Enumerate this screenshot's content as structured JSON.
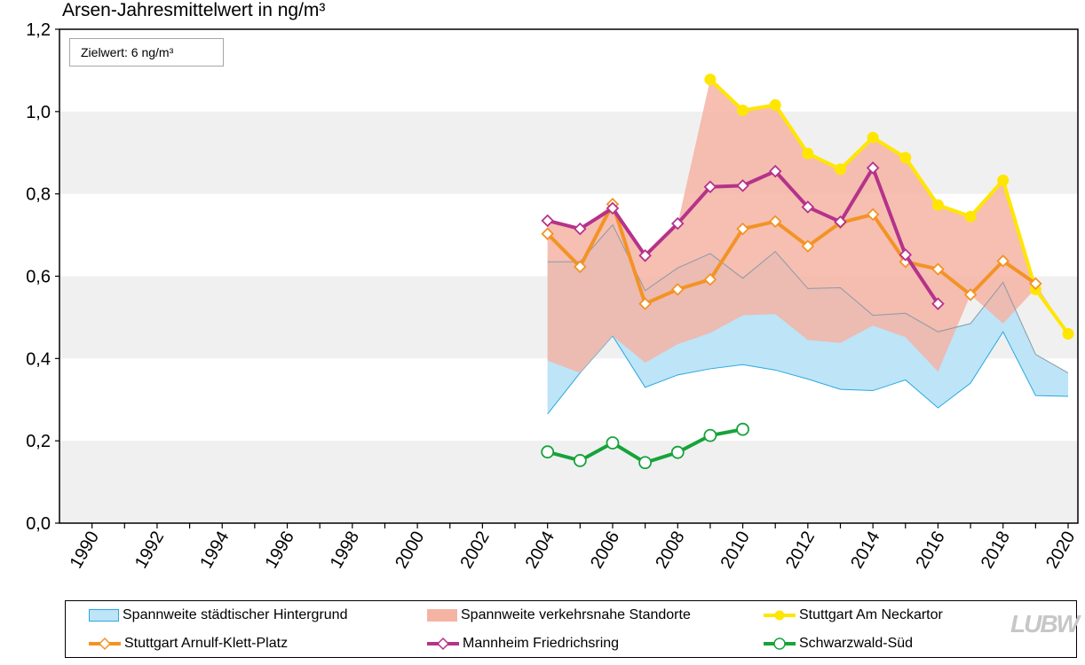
{
  "chart_data": {
    "type": "line",
    "title": "Arsen-Jahresmittelwert in ng/m³",
    "annotation": "Zielwert: 6 ng/m³",
    "ylim": [
      0,
      1.2
    ],
    "xlim": [
      1989,
      2020.3
    ],
    "y_ticks": [
      "0,0",
      "0,2",
      "0,4",
      "0,6",
      "0,8",
      "1,0",
      "1,2"
    ],
    "x_ticks": [
      "1990",
      "1992",
      "1994",
      "1996",
      "1998",
      "2000",
      "2002",
      "2004",
      "2006",
      "2008",
      "2010",
      "2012",
      "2014",
      "2016",
      "2018",
      "2020"
    ],
    "grid": "horizontal bands",
    "legend_placement": "bottom",
    "series": [
      {
        "name": "Spannweite städtischer Hintergrund",
        "kind": "band",
        "color": "#bde4f7",
        "edge_color": "#2aa9e0",
        "x": [
          2004,
          2005,
          2006,
          2007,
          2008,
          2009,
          2010,
          2011,
          2012,
          2013,
          2014,
          2015,
          2016,
          2017,
          2018,
          2019,
          2020
        ],
        "upper": [
          0.635,
          0.635,
          0.725,
          0.565,
          0.62,
          0.655,
          0.595,
          0.66,
          0.57,
          0.572,
          0.505,
          0.51,
          0.465,
          0.485,
          0.585,
          0.41,
          0.365
        ],
        "lower": [
          0.265,
          0.365,
          0.455,
          0.33,
          0.36,
          0.375,
          0.385,
          0.372,
          0.35,
          0.325,
          0.322,
          0.348,
          0.28,
          0.34,
          0.465,
          0.31,
          0.308
        ]
      },
      {
        "name": "Spannweite verkehrsnahe Standorte",
        "kind": "band",
        "color": "#f4b4a4",
        "x": [
          2004,
          2005,
          2006,
          2007,
          2008,
          2009,
          2010,
          2011,
          2012,
          2013,
          2014,
          2015,
          2016,
          2017,
          2018,
          2019,
          2020
        ],
        "upper": [
          0.735,
          0.715,
          0.775,
          0.65,
          0.728,
          1.078,
          1.003,
          1.016,
          0.898,
          0.86,
          0.937,
          0.888,
          0.773,
          0.745,
          0.833,
          0.582,
          0.46
        ],
        "lower": [
          0.395,
          0.365,
          0.455,
          0.39,
          0.435,
          0.462,
          0.505,
          0.508,
          0.445,
          0.438,
          0.48,
          0.452,
          0.368,
          0.555,
          0.485,
          0.57,
          0.46
        ]
      },
      {
        "name": "Stuttgart Am Neckartor",
        "kind": "line",
        "color": "#ffe600",
        "marker": "circle-filled",
        "x": [
          2009,
          2010,
          2011,
          2012,
          2013,
          2014,
          2015,
          2016,
          2017,
          2018,
          2019,
          2020
        ],
        "values": [
          1.078,
          1.003,
          1.016,
          0.898,
          0.86,
          0.937,
          0.888,
          0.773,
          0.745,
          0.833,
          0.568,
          0.46
        ]
      },
      {
        "name": "Stuttgart Arnulf-Klett-Platz",
        "kind": "line",
        "color": "#f39325",
        "marker": "diamond-open",
        "x": [
          2004,
          2005,
          2006,
          2007,
          2008,
          2009,
          2010,
          2011,
          2012,
          2013,
          2014,
          2015,
          2016,
          2017,
          2018,
          2019
        ],
        "values": [
          0.703,
          0.623,
          0.775,
          0.533,
          0.568,
          0.592,
          0.715,
          0.733,
          0.673,
          0.73,
          0.75,
          0.635,
          0.617,
          0.555,
          0.637,
          0.582
        ]
      },
      {
        "name": "Mannheim Friedrichsring",
        "kind": "line",
        "color": "#b5338a",
        "marker": "diamond-open",
        "x": [
          2004,
          2005,
          2006,
          2007,
          2008,
          2009,
          2010,
          2011,
          2012,
          2013,
          2014,
          2015,
          2016
        ],
        "values": [
          0.735,
          0.715,
          0.765,
          0.65,
          0.728,
          0.817,
          0.82,
          0.855,
          0.768,
          0.732,
          0.863,
          0.652,
          0.533
        ]
      },
      {
        "name": "Schwarzwald-Süd",
        "kind": "line",
        "color": "#16a33a",
        "marker": "circle-open",
        "x": [
          2004,
          2005,
          2006,
          2007,
          2008,
          2009,
          2010
        ],
        "values": [
          0.173,
          0.152,
          0.195,
          0.147,
          0.172,
          0.213,
          0.228
        ]
      }
    ]
  },
  "branding": {
    "logo_text": "LUBW"
  }
}
